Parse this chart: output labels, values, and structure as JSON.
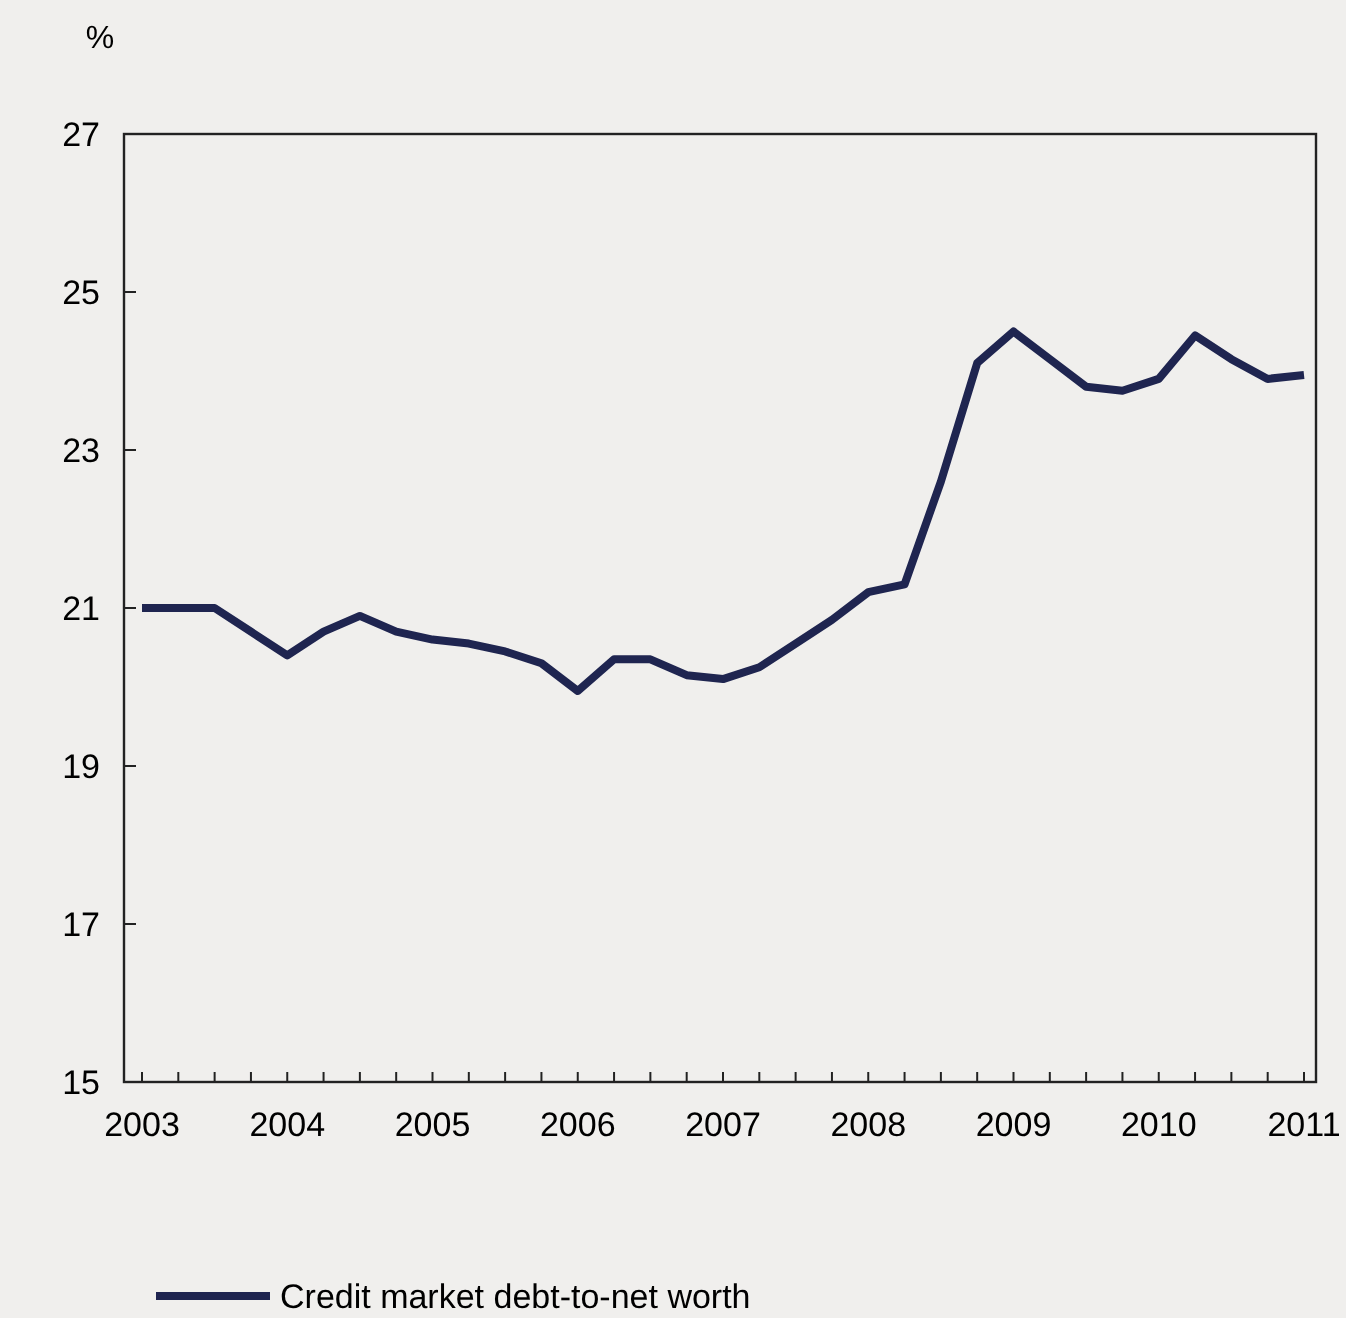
{
  "chart_data": {
    "type": "line",
    "ylabel": "%",
    "categories": [
      "2003",
      null,
      null,
      null,
      "2004",
      null,
      null,
      null,
      "2005",
      null,
      null,
      null,
      "2006",
      null,
      null,
      null,
      "2007",
      null,
      null,
      null,
      "2008",
      null,
      null,
      null,
      "2009",
      null,
      null,
      null,
      "2010",
      null,
      null,
      null,
      "2011"
    ],
    "series": [
      {
        "name": "Credit market debt-to-net worth",
        "color": "#1f2550",
        "values": [
          21.0,
          21.0,
          21.0,
          20.7,
          20.4,
          20.7,
          20.9,
          20.7,
          20.6,
          20.55,
          20.45,
          20.3,
          19.95,
          20.35,
          20.35,
          20.15,
          20.1,
          20.25,
          20.55,
          20.85,
          21.2,
          21.3,
          22.6,
          24.1,
          24.5,
          24.15,
          23.8,
          23.75,
          23.9,
          24.45,
          24.15,
          23.9,
          23.95
        ]
      }
    ],
    "ylim": [
      15,
      27
    ],
    "yticks": [
      15,
      17,
      19,
      21,
      23,
      25,
      27
    ],
    "grid": false,
    "legend": "bottom",
    "marker": "none",
    "line_style": "solid"
  }
}
